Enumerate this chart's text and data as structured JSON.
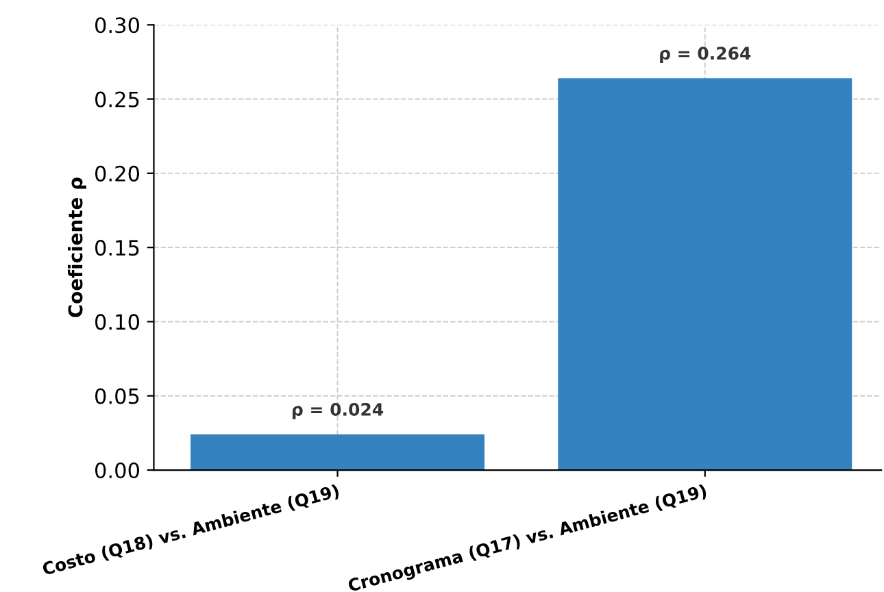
{
  "chart_data": {
    "type": "bar",
    "ylabel": "Coeficiente ρ",
    "categories": [
      "Costo (Q18) vs. Ambiente (Q19)",
      "Cronograma (Q17) vs. Ambiente (Q19)"
    ],
    "values": [
      0.024,
      0.264
    ],
    "color": "#3483c0",
    "value_labels": [
      "ρ = 0.024",
      "ρ = 0.264"
    ],
    "ylim": [
      0,
      0.3
    ],
    "yticks": [
      {
        "value": 0,
        "label": "0.00"
      },
      {
        "value": 0.05,
        "label": "0.05"
      },
      {
        "value": 0.1,
        "label": "0.10"
      },
      {
        "value": 0.15,
        "label": "0.15"
      },
      {
        "value": 0.2,
        "label": "0.20"
      },
      {
        "value": 0.25,
        "label": "0.25"
      },
      {
        "value": 0.3,
        "label": "0.30"
      }
    ],
    "grid": true
  }
}
